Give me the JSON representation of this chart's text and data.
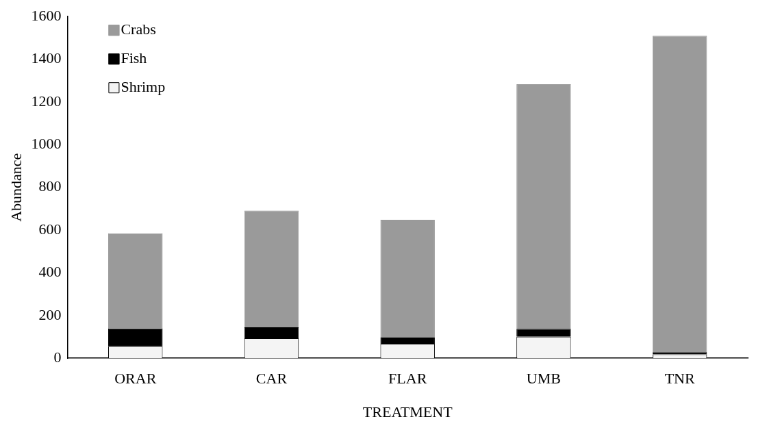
{
  "chart_data": {
    "type": "bar",
    "stacked": true,
    "xlabel": "TREATMENT",
    "ylabel": "Abundance",
    "categories": [
      "ORAR",
      "CAR",
      "FLAR",
      "UMB",
      "TNR"
    ],
    "series": [
      {
        "name": "Shrimp",
        "color": "#f4f4f4",
        "values": [
          56,
          94,
          68,
          101,
          18
        ]
      },
      {
        "name": "Fish",
        "color": "#000000",
        "values": [
          84,
          51,
          29,
          37,
          11
        ]
      },
      {
        "name": "Crabs",
        "color": "#9a9a9a",
        "values": [
          445,
          547,
          551,
          1145,
          1481
        ]
      }
    ],
    "ylim": [
      0,
      1600
    ],
    "yticks": [
      0,
      200,
      400,
      600,
      800,
      1000,
      1200,
      1400,
      1600
    ],
    "grid": false,
    "legend": "top left"
  }
}
